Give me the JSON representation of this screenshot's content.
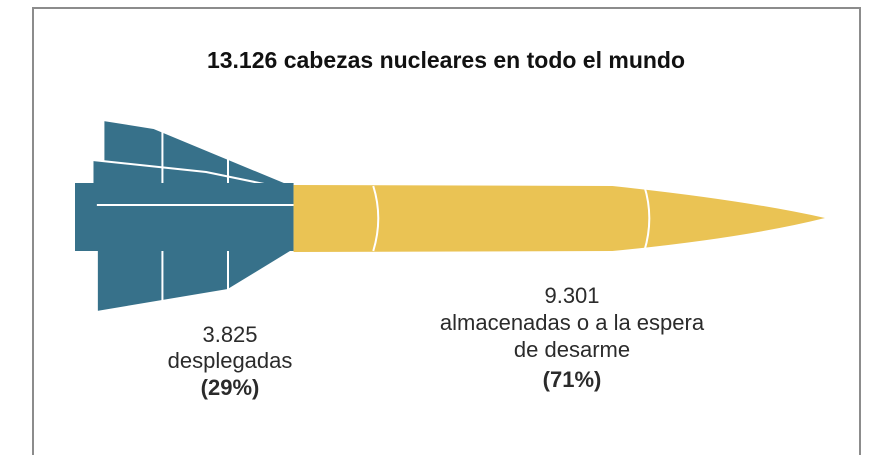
{
  "chart_data": {
    "type": "rocket",
    "title": "13.126 cabezas nucleares en todo el mundo",
    "categories": [
      "desplegadas",
      "almacenadas o a la espera de desarme"
    ],
    "values": [
      3825,
      9301
    ],
    "value_labels": [
      "3.825",
      "9.301"
    ],
    "shares": [
      29,
      71
    ],
    "share_labels": [
      "(29%)",
      "(71%)"
    ],
    "colors": [
      "#37718a",
      "#eac354"
    ]
  }
}
